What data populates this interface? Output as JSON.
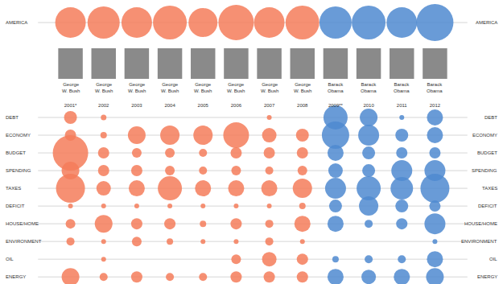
{
  "chart_data": {
    "type": "scatter",
    "marker": "circle",
    "grid": true,
    "categories": [
      "2001*",
      "2002",
      "2003",
      "2004",
      "2005",
      "2006",
      "2007",
      "2008",
      "2009**",
      "2010",
      "2011",
      "2012"
    ],
    "presidents": [
      "George W. Bush",
      "George W. Bush",
      "George W. Bush",
      "George W. Bush",
      "George W. Bush",
      "George W. Bush",
      "George W. Bush",
      "George W. Bush",
      "Barack Obama",
      "Barack Obama",
      "Barack Obama",
      "Barack Obama"
    ],
    "colors": [
      "#f47c5a",
      "#f47c5a",
      "#f47c5a",
      "#f47c5a",
      "#f47c5a",
      "#f47c5a",
      "#f47c5a",
      "#f47c5a",
      "#4f8ad0",
      "#4f8ad0",
      "#4f8ad0",
      "#4f8ad0"
    ],
    "headline_row": {
      "name": "AMERICA",
      "sizes": [
        38,
        40,
        38,
        42,
        36,
        44,
        38,
        42,
        40,
        42,
        38,
        46
      ]
    },
    "rows": [
      {
        "name": "DEBT",
        "sizes": [
          16,
          7,
          0,
          0,
          0,
          0,
          6,
          0,
          30,
          22,
          6,
          20
        ]
      },
      {
        "name": "ECONOMY",
        "sizes": [
          14,
          8,
          22,
          24,
          24,
          32,
          18,
          16,
          34,
          26,
          16,
          20
        ]
      },
      {
        "name": "BUDGET",
        "sizes": [
          44,
          14,
          12,
          12,
          10,
          14,
          14,
          14,
          20,
          16,
          14,
          14
        ]
      },
      {
        "name": "SPENDING",
        "sizes": [
          22,
          14,
          14,
          12,
          10,
          12,
          10,
          12,
          18,
          16,
          26,
          26
        ]
      },
      {
        "name": "TAXES",
        "sizes": [
          36,
          18,
          20,
          30,
          20,
          20,
          20,
          24,
          26,
          30,
          28,
          36
        ]
      },
      {
        "name": "DEFICIT",
        "sizes": [
          6,
          6,
          6,
          6,
          6,
          6,
          6,
          8,
          16,
          24,
          16,
          14
        ]
      },
      {
        "name": "HOUSE/HOME",
        "sizes": [
          12,
          22,
          14,
          14,
          8,
          14,
          10,
          20,
          20,
          10,
          14,
          26
        ]
      },
      {
        "name": "ENVIRONMENT",
        "sizes": [
          10,
          6,
          12,
          8,
          6,
          6,
          10,
          6,
          0,
          0,
          0,
          6
        ]
      },
      {
        "name": "OIL",
        "sizes": [
          0,
          6,
          0,
          0,
          0,
          12,
          18,
          14,
          8,
          10,
          10,
          20
        ]
      },
      {
        "name": "ENERGY",
        "sizes": [
          22,
          10,
          14,
          10,
          10,
          14,
          14,
          14,
          20,
          18,
          20,
          22
        ]
      }
    ]
  }
}
